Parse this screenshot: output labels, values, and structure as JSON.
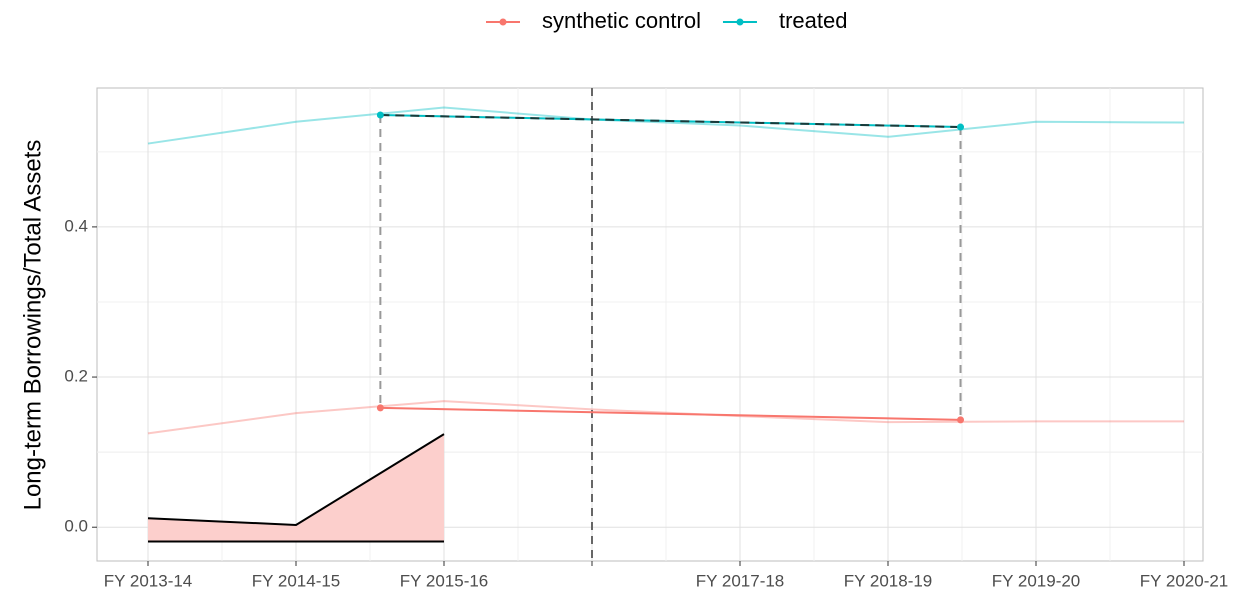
{
  "chart_data": {
    "type": "line",
    "y_label": "Long-term Borrowings/Total Assets",
    "categories": [
      "FY 2013-14",
      "FY 2014-15",
      "FY 2015-16",
      null,
      "FY 2017-18",
      "FY 2018-19",
      "FY 2019-20",
      "FY 2020-21"
    ],
    "series": [
      {
        "name": "synthetic control",
        "color": "#F8766D",
        "values": [
          0.125,
          0.152,
          0.168,
          0.157,
          0.148,
          0.14,
          0.141,
          0.141
        ]
      },
      {
        "name": "treated",
        "color": "#00BFC4",
        "values": [
          0.511,
          0.54,
          0.559,
          0.543,
          0.535,
          0.52,
          0.54,
          0.539
        ]
      }
    ],
    "ylim": [
      -0.045,
      0.585
    ],
    "yticks": [
      {
        "value": 0,
        "label": "0.0"
      },
      0.2,
      0.4
    ],
    "grid": true,
    "legend": "top",
    "highlight": {
      "x": [
        1.57,
        5.49
      ],
      "synthetic": [
        0.159,
        0.143
      ],
      "treated": [
        0.549,
        0.533
      ]
    },
    "vline_x": 3,
    "ribbon": {
      "color": "#FCCFCC",
      "x": [
        0,
        1,
        2
      ],
      "upper": [
        0.012,
        0.003,
        0.124
      ],
      "lower": [
        -0.019,
        -0.019,
        -0.019
      ]
    }
  }
}
